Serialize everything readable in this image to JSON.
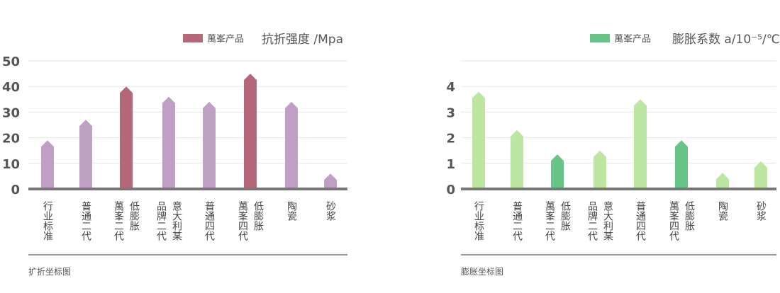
{
  "chart_data": [
    {
      "type": "bar",
      "title": "抗折强度 /Mpa",
      "caption": "扩折坐标图",
      "legend": {
        "label": "萬峯产品",
        "color": "#b5677a"
      },
      "categories": [
        [
          "行业标准"
        ],
        [
          "普通二代"
        ],
        [
          "萬峯二代",
          "低膨胀"
        ],
        [
          "品牌二代",
          "意大利某"
        ],
        [
          "普通四代"
        ],
        [
          "萬峯四代",
          "低膨胀"
        ],
        [
          "陶瓷"
        ],
        [
          "砂浆"
        ]
      ],
      "values": [
        19,
        27,
        40,
        36,
        34,
        45,
        34,
        6
      ],
      "colors": [
        "#bf9fc4",
        "#bf9fc4",
        "#b5677a",
        "#bf9fc4",
        "#bf9fc4",
        "#b5677a",
        "#bf9fc4",
        "#bf9fc4"
      ],
      "ylim": [
        0,
        50
      ],
      "yticks": [
        0,
        10,
        20,
        30,
        40,
        50
      ],
      "grid": true
    },
    {
      "type": "bar",
      "title": "膨胀系数 a/10⁻⁵/℃",
      "caption": "膨胀坐标图",
      "legend": {
        "label": "萬峯产品",
        "color": "#67c487"
      },
      "categories": [
        [
          "行业标准"
        ],
        [
          "普通二代"
        ],
        [
          "萬峯二代",
          "低膨胀"
        ],
        [
          "品牌二代",
          "意大利某"
        ],
        [
          "普通四代"
        ],
        [
          "萬峯四代",
          "低膨胀"
        ],
        [
          "陶瓷"
        ],
        [
          "砂浆"
        ]
      ],
      "values": [
        3.8,
        2.3,
        1.35,
        1.5,
        3.5,
        1.9,
        0.63,
        1.08
      ],
      "colors": [
        "#bde6a3",
        "#bde6a3",
        "#67c487",
        "#bde6a3",
        "#bde6a3",
        "#67c487",
        "#bde6a3",
        "#bde6a3"
      ],
      "ylim": [
        0,
        5
      ],
      "yticks": [
        0,
        1,
        2,
        3,
        4
      ],
      "grid": true
    }
  ]
}
